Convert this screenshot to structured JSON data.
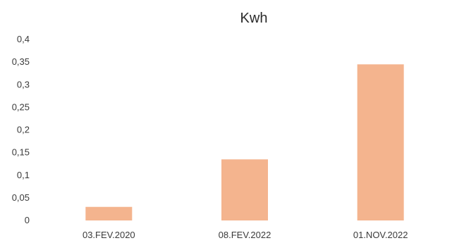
{
  "chart_data": {
    "type": "bar",
    "title": "Kwh",
    "categories": [
      "03.FEV.2020",
      "08.FEV.2022",
      "01.NOV.2022"
    ],
    "values": [
      0.03,
      0.135,
      0.345
    ],
    "ylim": [
      0,
      0.4
    ],
    "yticks": [
      "0",
      "0,05",
      "0,1",
      "0,15",
      "0,2",
      "0,25",
      "0,3",
      "0,35",
      "0,4"
    ],
    "ytick_values": [
      0,
      0.05,
      0.1,
      0.15,
      0.2,
      0.25,
      0.3,
      0.35,
      0.4
    ],
    "grid": false,
    "legend": "none",
    "bar_color": "#f4b48e"
  }
}
